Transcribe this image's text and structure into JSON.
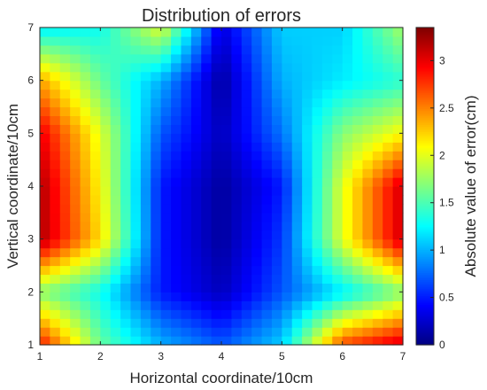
{
  "chart_data": {
    "type": "heatmap",
    "title": "Distribution of errors",
    "xlabel": "Horizontal coordinate/10cm",
    "ylabel": "Vertical coordinate/10cm",
    "colorbar_label": "Absolute value of error(cm)",
    "x": [
      1,
      2,
      3,
      4,
      5,
      6,
      7
    ],
    "y": [
      1,
      2,
      3,
      4,
      5,
      6,
      7
    ],
    "xlim": [
      1,
      7
    ],
    "ylim": [
      1,
      7
    ],
    "x_ticks": [
      "1",
      "2",
      "3",
      "4",
      "5",
      "6",
      "7"
    ],
    "y_ticks": [
      "1",
      "2",
      "3",
      "4",
      "5",
      "6",
      "7"
    ],
    "color_range": [
      0,
      3.35
    ],
    "colorbar_ticks": [
      "0",
      "0.5",
      "1",
      "1.5",
      "2",
      "2.5",
      "3"
    ],
    "colorbar_tick_values": [
      0,
      0.5,
      1,
      1.5,
      2,
      2.5,
      3
    ],
    "colormap": "jet",
    "grid": false,
    "z_rows_from_y1": [
      [
        2.9,
        1.6,
        1.0,
        0.7,
        1.1,
        2.7,
        3.1
      ],
      [
        1.7,
        1.3,
        0.5,
        0.2,
        0.7,
        1.2,
        1.7
      ],
      [
        3.2,
        2.2,
        0.5,
        0.1,
        0.6,
        2.0,
        3.1
      ],
      [
        3.2,
        2.1,
        0.5,
        0.1,
        0.5,
        2.0,
        3.1
      ],
      [
        3.0,
        2.0,
        0.7,
        0.2,
        0.8,
        1.7,
        2.1
      ],
      [
        2.4,
        1.6,
        1.0,
        0.1,
        1.0,
        1.2,
        1.4
      ],
      [
        1.2,
        1.3,
        2.0,
        0.3,
        1.1,
        1.1,
        1.8
      ]
    ]
  }
}
